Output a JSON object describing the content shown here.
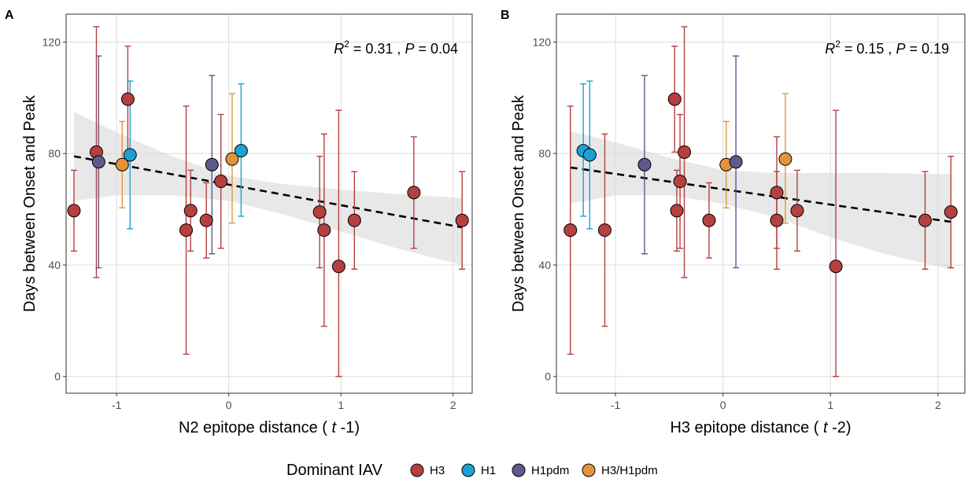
{
  "legend": {
    "title": "Dominant IAV",
    "items": [
      {
        "label": "H3",
        "color": "#b5403f"
      },
      {
        "label": "H1",
        "color": "#1ba1d4"
      },
      {
        "label": "H1pdm",
        "color": "#5e5a8c"
      },
      {
        "label": "H3/H1pdm",
        "color": "#e3943a"
      }
    ]
  },
  "chart_data": [
    {
      "panel": "A",
      "type": "scatter",
      "xlabel_prefix": "N2 epitope distance ( ",
      "xlabel_italic": "t",
      "xlabel_suffix": " -1)",
      "ylabel": "Days between Onset and Peak",
      "xlim": [
        -1.45,
        2.17
      ],
      "ylim": [
        -6,
        130
      ],
      "xticks": [
        -1,
        0,
        1,
        2
      ],
      "yticks": [
        0,
        40,
        80,
        120
      ],
      "annotation": {
        "r2": "0.31",
        "p": "0.04"
      },
      "fit": {
        "x0": -1.38,
        "y0": 79,
        "x1": 2.08,
        "y1": 53.5
      },
      "ribbon": {
        "x": [
          -1.38,
          -1.0,
          -0.5,
          0.0,
          0.5,
          1.0,
          1.5,
          2.08
        ],
        "upper": [
          95,
          87.5,
          79,
          72,
          69,
          67,
          65.5,
          64
        ],
        "lower": [
          63,
          65,
          65,
          63,
          58,
          52,
          46,
          40
        ]
      },
      "points": [
        {
          "x": -1.38,
          "y": 59.5,
          "lo": 45,
          "hi": 74,
          "dom": "H3"
        },
        {
          "x": -1.18,
          "y": 80.5,
          "lo": 35.5,
          "hi": 125.5,
          "dom": "H3"
        },
        {
          "x": -1.16,
          "y": 77,
          "lo": 39,
          "hi": 115,
          "dom": "H1pdm"
        },
        {
          "x": -0.95,
          "y": 76,
          "lo": 60.5,
          "hi": 91.5,
          "dom": "H3/H1pdm"
        },
        {
          "x": -0.9,
          "y": 99.5,
          "lo": 80.5,
          "hi": 118.5,
          "dom": "H3"
        },
        {
          "x": -0.88,
          "y": 79.5,
          "lo": 53,
          "hi": 106,
          "dom": "H1"
        },
        {
          "x": -0.38,
          "y": 52.5,
          "lo": 8,
          "hi": 97,
          "dom": "H3"
        },
        {
          "x": -0.34,
          "y": 59.5,
          "lo": 45,
          "hi": 74,
          "dom": "H3"
        },
        {
          "x": -0.2,
          "y": 56,
          "lo": 42.5,
          "hi": 69.5,
          "dom": "H3"
        },
        {
          "x": -0.15,
          "y": 76,
          "lo": 44,
          "hi": 108,
          "dom": "H1pdm"
        },
        {
          "x": -0.07,
          "y": 70,
          "lo": 46,
          "hi": 94,
          "dom": "H3"
        },
        {
          "x": 0.03,
          "y": 78,
          "lo": 55,
          "hi": 101.5,
          "dom": "H3/H1pdm"
        },
        {
          "x": 0.11,
          "y": 81,
          "lo": 57.5,
          "hi": 105,
          "dom": "H1"
        },
        {
          "x": 0.81,
          "y": 59,
          "lo": 39,
          "hi": 79,
          "dom": "H3"
        },
        {
          "x": 0.85,
          "y": 52.5,
          "lo": 18,
          "hi": 87,
          "dom": "H3"
        },
        {
          "x": 0.98,
          "y": 39.5,
          "lo": 0,
          "hi": 95.5,
          "dom": "H3"
        },
        {
          "x": 1.12,
          "y": 56,
          "lo": 38.5,
          "hi": 73.5,
          "dom": "H3"
        },
        {
          "x": 1.65,
          "y": 66,
          "lo": 46,
          "hi": 86,
          "dom": "H3"
        },
        {
          "x": 2.08,
          "y": 56,
          "lo": 38.5,
          "hi": 73.5,
          "dom": "H3"
        }
      ]
    },
    {
      "panel": "B",
      "type": "scatter",
      "xlabel_prefix": "H3 epitope distance ( ",
      "xlabel_italic": "t",
      "xlabel_suffix": " -2)",
      "ylabel": "Days between Onset and Peak",
      "xlim": [
        -1.55,
        2.25
      ],
      "ylim": [
        -6,
        130
      ],
      "xticks": [
        -1,
        0,
        1,
        2
      ],
      "yticks": [
        0,
        40,
        80,
        120
      ],
      "annotation": {
        "r2": "0.15",
        "p": "0.19"
      },
      "fit": {
        "x0": -1.42,
        "y0": 75,
        "x1": 2.12,
        "y1": 55.5
      },
      "ribbon": {
        "x": [
          -1.42,
          -1.0,
          -0.5,
          0.0,
          0.5,
          1.0,
          1.5,
          2.12
        ],
        "upper": [
          88,
          84,
          78.5,
          74,
          73,
          73,
          73,
          72.5
        ],
        "lower": [
          62,
          65,
          65,
          62,
          57,
          50,
          44,
          38.5
        ]
      },
      "points": [
        {
          "x": -1.42,
          "y": 52.5,
          "lo": 8,
          "hi": 97,
          "dom": "H3"
        },
        {
          "x": -1.3,
          "y": 81,
          "lo": 57.5,
          "hi": 105,
          "dom": "H1"
        },
        {
          "x": -1.24,
          "y": 79.5,
          "lo": 53,
          "hi": 106,
          "dom": "H1"
        },
        {
          "x": -1.1,
          "y": 52.5,
          "lo": 18,
          "hi": 87,
          "dom": "H3"
        },
        {
          "x": -0.73,
          "y": 76,
          "lo": 44,
          "hi": 108,
          "dom": "H1pdm"
        },
        {
          "x": -0.45,
          "y": 99.5,
          "lo": 80.5,
          "hi": 118.5,
          "dom": "H3"
        },
        {
          "x": -0.43,
          "y": 59.5,
          "lo": 45,
          "hi": 74,
          "dom": "H3"
        },
        {
          "x": -0.4,
          "y": 70,
          "lo": 46,
          "hi": 94,
          "dom": "H3"
        },
        {
          "x": -0.36,
          "y": 80.5,
          "lo": 35.5,
          "hi": 125.5,
          "dom": "H3"
        },
        {
          "x": -0.13,
          "y": 56,
          "lo": 42.5,
          "hi": 69.5,
          "dom": "H3"
        },
        {
          "x": 0.03,
          "y": 76,
          "lo": 60.5,
          "hi": 91.5,
          "dom": "H3/H1pdm"
        },
        {
          "x": 0.12,
          "y": 77,
          "lo": 39,
          "hi": 115,
          "dom": "H1pdm"
        },
        {
          "x": 0.5,
          "y": 66,
          "lo": 46,
          "hi": 86,
          "dom": "H3"
        },
        {
          "x": 0.5,
          "y": 56,
          "lo": 38.5,
          "hi": 73.5,
          "dom": "H3"
        },
        {
          "x": 0.58,
          "y": 78,
          "lo": 55,
          "hi": 101.5,
          "dom": "H3/H1pdm"
        },
        {
          "x": 0.69,
          "y": 59.5,
          "lo": 45,
          "hi": 74,
          "dom": "H3"
        },
        {
          "x": 1.05,
          "y": 39.5,
          "lo": 0,
          "hi": 95.5,
          "dom": "H3"
        },
        {
          "x": 1.88,
          "y": 56,
          "lo": 38.5,
          "hi": 73.5,
          "dom": "H3"
        },
        {
          "x": 2.12,
          "y": 59,
          "lo": 39,
          "hi": 79,
          "dom": "H3"
        }
      ]
    }
  ]
}
